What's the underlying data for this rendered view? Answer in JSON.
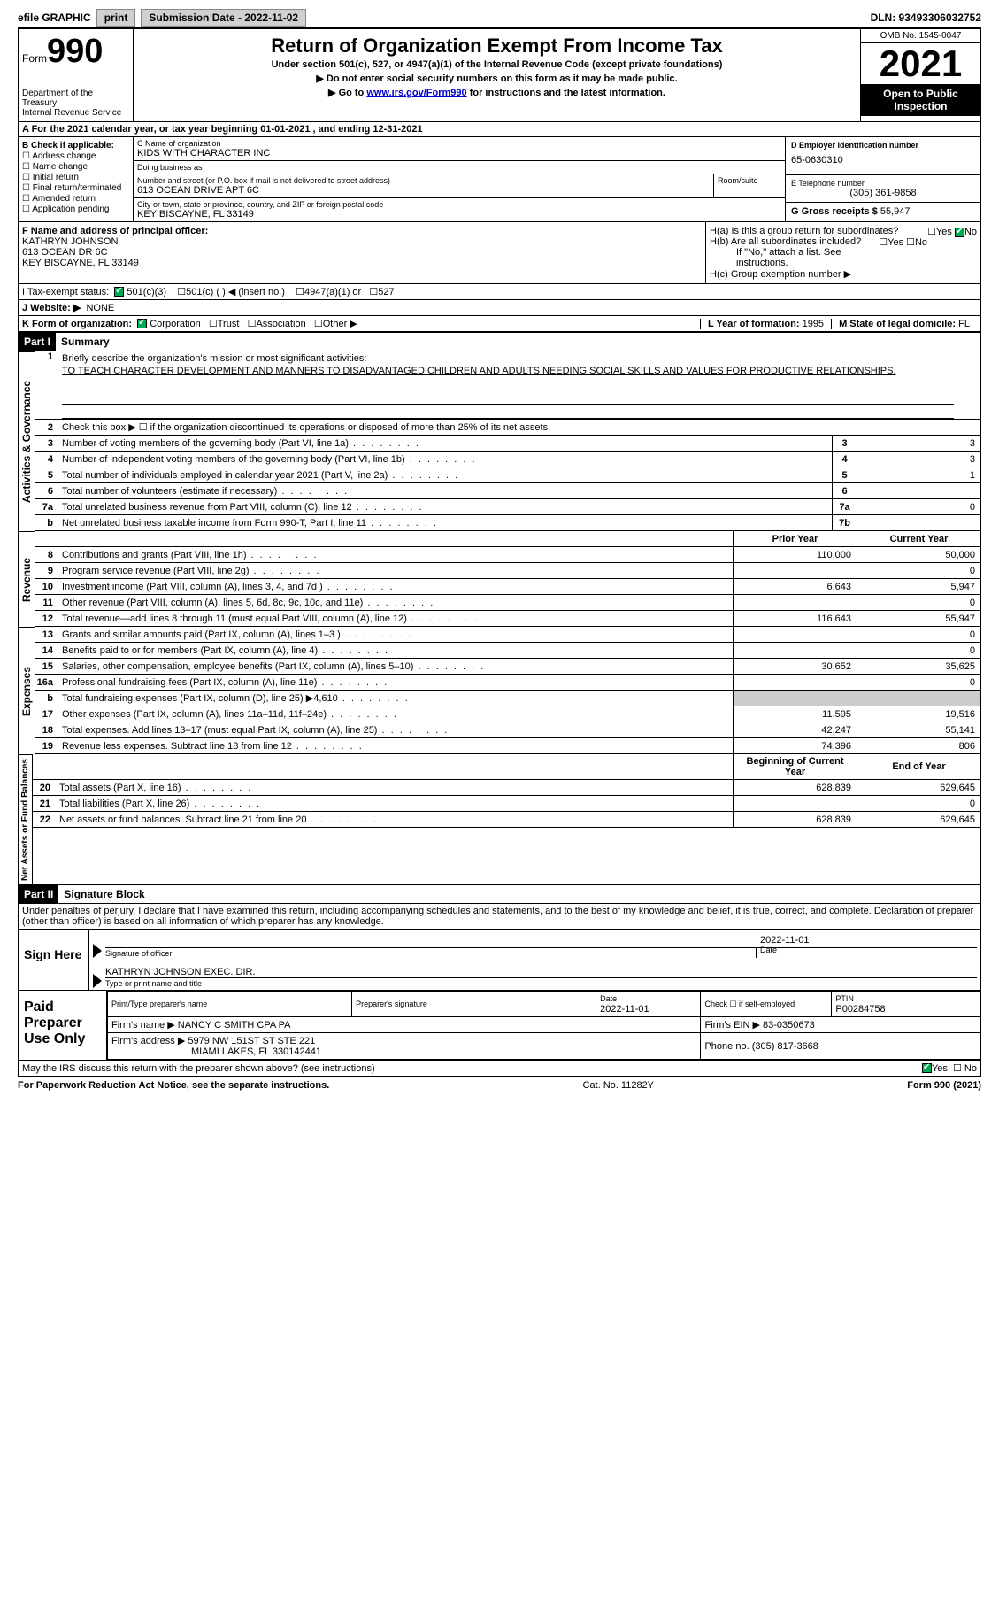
{
  "topbar": {
    "efile_label": "efile GRAPHIC",
    "print_btn": "print",
    "submission_label": "Submission Date - 2022-11-02",
    "dln_label": "DLN: 93493306032752"
  },
  "header": {
    "form_prefix": "Form",
    "form_number": "990",
    "dept": "Department of the Treasury",
    "irs": "Internal Revenue Service",
    "title": "Return of Organization Exempt From Income Tax",
    "subtitle": "Under section 501(c), 527, or 4947(a)(1) of the Internal Revenue Code (except private foundations)",
    "note1": "▶ Do not enter social security numbers on this form as it may be made public.",
    "note2_prefix": "▶ Go to ",
    "note2_link": "www.irs.gov/Form990",
    "note2_suffix": " for instructions and the latest information.",
    "omb": "OMB No. 1545-0047",
    "year": "2021",
    "open_public": "Open to Public Inspection"
  },
  "line_a": "A For the 2021 calendar year, or tax year beginning 01-01-2021    , and ending 12-31-2021",
  "section_b": {
    "title": "B Check if applicable:",
    "opts": [
      "Address change",
      "Name change",
      "Initial return",
      "Final return/terminated",
      "Amended return",
      "Application pending"
    ]
  },
  "section_c": {
    "name_label": "C Name of organization",
    "name": "KIDS WITH CHARACTER INC",
    "dba_label": "Doing business as",
    "dba": "",
    "addr_label": "Number and street (or P.O. box if mail is not delivered to street address)",
    "room_label": "Room/suite",
    "addr": "613 OCEAN DRIVE APT 6C",
    "city_label": "City or town, state or province, country, and ZIP or foreign postal code",
    "city": "KEY BISCAYNE, FL  33149"
  },
  "section_d": {
    "label": "D Employer identification number",
    "ein": "65-0630310",
    "phone_label": "E Telephone number",
    "phone": "(305) 361-9858",
    "gross_label": "G Gross receipts $",
    "gross": "55,947"
  },
  "section_f": {
    "label": "F Name and address of principal officer:",
    "name": "KATHRYN JOHNSON",
    "addr1": "613 OCEAN DR 6C",
    "addr2": "KEY BISCAYNE, FL  33149"
  },
  "section_h": {
    "ha": "H(a)  Is this a group return for subordinates?",
    "hb": "H(b)  Are all subordinates included?",
    "hb_note": "If \"No,\" attach a list. See instructions.",
    "hc": "H(c)  Group exemption number ▶"
  },
  "line_i": {
    "label": "I   Tax-exempt status:",
    "opts": [
      "501(c)(3)",
      "501(c) (  ) ◀ (insert no.)",
      "4947(a)(1) or",
      "527"
    ]
  },
  "line_j": {
    "label": "J   Website: ▶",
    "val": "NONE"
  },
  "line_k": {
    "label": "K Form of organization:",
    "opts": [
      "Corporation",
      "Trust",
      "Association",
      "Other ▶"
    ],
    "l_label": "L Year of formation:",
    "l_val": "1995",
    "m_label": "M State of legal domicile:",
    "m_val": "FL"
  },
  "part1": {
    "label": "Part I",
    "title": "Summary"
  },
  "summary": {
    "sections": {
      "gov": "Activities & Governance",
      "rev": "Revenue",
      "exp": "Expenses",
      "net": "Net Assets or Fund Balances"
    },
    "line1_label": "Briefly describe the organization's mission or most significant activities:",
    "mission": "TO TEACH CHARACTER DEVELOPMENT AND MANNERS TO DISADVANTAGED CHILDREN AND ADULTS NEEDING SOCIAL SKILLS AND VALUES FOR PRODUCTIVE RELATIONSHIPS.",
    "line2": "Check this box ▶ ☐  if the organization discontinued its operations or disposed of more than 25% of its net assets.",
    "lines_single": [
      {
        "n": "3",
        "d": "Number of voting members of the governing body (Part VI, line 1a)",
        "box": "3",
        "v": "3"
      },
      {
        "n": "4",
        "d": "Number of independent voting members of the governing body (Part VI, line 1b)",
        "box": "4",
        "v": "3"
      },
      {
        "n": "5",
        "d": "Total number of individuals employed in calendar year 2021 (Part V, line 2a)",
        "box": "5",
        "v": "1"
      },
      {
        "n": "6",
        "d": "Total number of volunteers (estimate if necessary)",
        "box": "6",
        "v": ""
      },
      {
        "n": "7a",
        "d": "Total unrelated business revenue from Part VIII, column (C), line 12",
        "box": "7a",
        "v": "0"
      },
      {
        "n": "b",
        "d": "Net unrelated business taxable income from Form 990-T, Part I, line 11",
        "box": "7b",
        "v": ""
      }
    ],
    "col_headers": {
      "prior": "Prior Year",
      "current": "Current Year"
    },
    "rev_lines": [
      {
        "n": "8",
        "d": "Contributions and grants (Part VIII, line 1h)",
        "p": "110,000",
        "c": "50,000"
      },
      {
        "n": "9",
        "d": "Program service revenue (Part VIII, line 2g)",
        "p": "",
        "c": "0"
      },
      {
        "n": "10",
        "d": "Investment income (Part VIII, column (A), lines 3, 4, and 7d )",
        "p": "6,643",
        "c": "5,947"
      },
      {
        "n": "11",
        "d": "Other revenue (Part VIII, column (A), lines 5, 6d, 8c, 9c, 10c, and 11e)",
        "p": "",
        "c": "0"
      },
      {
        "n": "12",
        "d": "Total revenue—add lines 8 through 11 (must equal Part VIII, column (A), line 12)",
        "p": "116,643",
        "c": "55,947"
      }
    ],
    "exp_lines": [
      {
        "n": "13",
        "d": "Grants and similar amounts paid (Part IX, column (A), lines 1–3 )",
        "p": "",
        "c": "0"
      },
      {
        "n": "14",
        "d": "Benefits paid to or for members (Part IX, column (A), line 4)",
        "p": "",
        "c": "0"
      },
      {
        "n": "15",
        "d": "Salaries, other compensation, employee benefits (Part IX, column (A), lines 5–10)",
        "p": "30,652",
        "c": "35,625"
      },
      {
        "n": "16a",
        "d": "Professional fundraising fees (Part IX, column (A), line 11e)",
        "p": "",
        "c": "0"
      },
      {
        "n": "b",
        "d": "Total fundraising expenses (Part IX, column (D), line 25) ▶4,610",
        "p": "SHADE",
        "c": "SHADE"
      },
      {
        "n": "17",
        "d": "Other expenses (Part IX, column (A), lines 11a–11d, 11f–24e)",
        "p": "11,595",
        "c": "19,516"
      },
      {
        "n": "18",
        "d": "Total expenses. Add lines 13–17 (must equal Part IX, column (A), line 25)",
        "p": "42,247",
        "c": "55,141"
      },
      {
        "n": "19",
        "d": "Revenue less expenses. Subtract line 18 from line 12",
        "p": "74,396",
        "c": "806"
      }
    ],
    "net_headers": {
      "prior": "Beginning of Current Year",
      "current": "End of Year"
    },
    "net_lines": [
      {
        "n": "20",
        "d": "Total assets (Part X, line 16)",
        "p": "628,839",
        "c": "629,645"
      },
      {
        "n": "21",
        "d": "Total liabilities (Part X, line 26)",
        "p": "",
        "c": "0"
      },
      {
        "n": "22",
        "d": "Net assets or fund balances. Subtract line 21 from line 20",
        "p": "628,839",
        "c": "629,645"
      }
    ]
  },
  "part2": {
    "label": "Part II",
    "title": "Signature Block"
  },
  "sig_declare": "Under penalties of perjury, I declare that I have examined this return, including accompanying schedules and statements, and to the best of my knowledge and belief, it is true, correct, and complete. Declaration of preparer (other than officer) is based on all information of which preparer has any knowledge.",
  "sign_here": {
    "label": "Sign Here",
    "sig_officer": "Signature of officer",
    "date_val": "2022-11-01",
    "date_label": "Date",
    "name": "KATHRYN JOHNSON  EXEC. DIR.",
    "name_label": "Type or print name and title"
  },
  "paid_prep": {
    "label": "Paid Preparer Use Only",
    "h_name": "Print/Type preparer's name",
    "h_sig": "Preparer's signature",
    "h_date": "Date",
    "date": "2022-11-01",
    "h_check": "Check ☐ if self-employed",
    "h_ptin": "PTIN",
    "ptin": "P00284758",
    "firm_name_label": "Firm's name     ▶",
    "firm_name": "NANCY C SMITH CPA PA",
    "firm_ein_label": "Firm's EIN ▶",
    "firm_ein": "83-0350673",
    "firm_addr_label": "Firm's address ▶",
    "firm_addr1": "5979 NW 151ST ST STE 221",
    "firm_addr2": "MIAMI LAKES, FL  330142441",
    "phone_label": "Phone no.",
    "phone": "(305) 817-3668"
  },
  "discuss": "May the IRS discuss this return with the preparer shown above? (see instructions)",
  "footer": {
    "left": "For Paperwork Reduction Act Notice, see the separate instructions.",
    "mid": "Cat. No. 11282Y",
    "right": "Form 990 (2021)"
  }
}
